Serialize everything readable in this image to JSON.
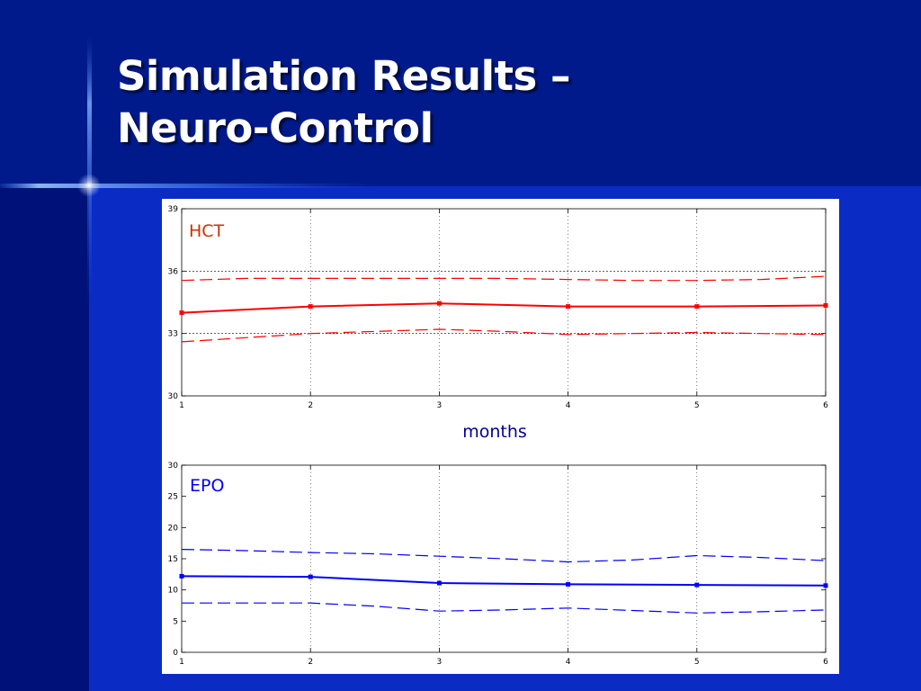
{
  "slide": {
    "title_line1": "Simulation Results –",
    "title_line2": "Neuro-Control"
  },
  "colors": {
    "background": "#001a8c",
    "title": "#ffffff",
    "hct_series": "#ff0000",
    "hct_label": "#cc3300",
    "epo_series": "#0000ff",
    "epo_label": "#0000ff",
    "xlabel": "#000099"
  },
  "chart_data": [
    {
      "type": "line",
      "label": "HCT",
      "xlabel": "months",
      "xlim": [
        1,
        6
      ],
      "ylim": [
        30,
        39
      ],
      "xticks": [
        1,
        2,
        3,
        4,
        5,
        6
      ],
      "yticks": [
        30,
        33,
        36,
        39
      ],
      "grid": true,
      "reference_lines": [
        33,
        36
      ],
      "series": [
        {
          "style": "solid-with-square-markers",
          "x": [
            1,
            2,
            3,
            4,
            5,
            6
          ],
          "y": [
            34.0,
            34.3,
            34.45,
            34.3,
            34.3,
            34.35
          ]
        },
        {
          "style": "dashed",
          "x": [
            1,
            1.5,
            2,
            2.5,
            3,
            3.5,
            4,
            4.5,
            5,
            5.5,
            6
          ],
          "y": [
            35.55,
            35.65,
            35.65,
            35.65,
            35.65,
            35.65,
            35.6,
            35.55,
            35.55,
            35.6,
            35.75
          ]
        },
        {
          "style": "dashed",
          "x": [
            1,
            1.5,
            2,
            2.5,
            3,
            3.5,
            4,
            4.5,
            5,
            5.5,
            6
          ],
          "y": [
            32.6,
            32.8,
            33.0,
            33.1,
            33.2,
            33.1,
            32.95,
            33.0,
            33.05,
            33.0,
            32.95
          ]
        }
      ]
    },
    {
      "type": "line",
      "label": "EPO",
      "xlabel": "",
      "xlim": [
        1,
        6
      ],
      "ylim": [
        0,
        30
      ],
      "xticks": [
        1,
        2,
        3,
        4,
        5,
        6
      ],
      "yticks": [
        0,
        5,
        10,
        15,
        20,
        25,
        30
      ],
      "grid": true,
      "reference_lines": [],
      "series": [
        {
          "style": "solid-with-square-markers",
          "x": [
            1,
            2,
            3,
            4,
            5,
            6
          ],
          "y": [
            12.2,
            12.1,
            11.1,
            10.9,
            10.8,
            10.7
          ]
        },
        {
          "style": "dashed",
          "x": [
            1,
            1.5,
            2,
            2.5,
            3,
            3.5,
            4,
            4.5,
            5,
            5.5,
            6
          ],
          "y": [
            16.5,
            16.3,
            16.0,
            15.8,
            15.4,
            15.0,
            14.5,
            14.8,
            15.5,
            15.2,
            14.7
          ]
        },
        {
          "style": "dashed",
          "x": [
            1,
            1.5,
            2,
            2.5,
            3,
            3.5,
            4,
            4.5,
            5,
            5.5,
            6
          ],
          "y": [
            7.9,
            7.9,
            7.9,
            7.4,
            6.6,
            6.8,
            7.1,
            6.7,
            6.3,
            6.5,
            6.8
          ]
        }
      ]
    }
  ]
}
